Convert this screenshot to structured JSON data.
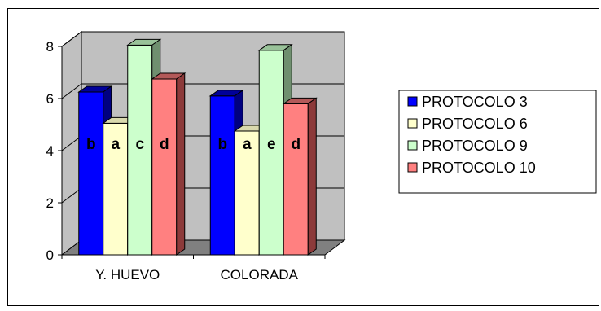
{
  "chart_data": {
    "type": "bar",
    "categories": [
      "Y. HUEVO",
      "COLORADA"
    ],
    "series": [
      {
        "name": "PROTOCOLO 3",
        "values": [
          6.25,
          6.1
        ],
        "letters": [
          "b",
          "b"
        ],
        "color": "#0000ff",
        "side": "#000080",
        "top": "#000099"
      },
      {
        "name": "PROTOCOLO 6",
        "values": [
          5.05,
          4.75
        ],
        "letters": [
          "a",
          "a"
        ],
        "color": "#ffffcc",
        "side": "#bfbf99",
        "top": "#d9d9ad"
      },
      {
        "name": "PROTOCOLO 9",
        "values": [
          8.05,
          7.85
        ],
        "letters": [
          "c",
          "e"
        ],
        "color": "#ccffcc",
        "side": "#6f8f6f",
        "top": "#99c299"
      },
      {
        "name": "PROTOCOLO 10",
        "values": [
          6.75,
          5.8
        ],
        "letters": [
          "d",
          "d"
        ],
        "color": "#ff8080",
        "side": "#8c3a3a",
        "top": "#b35959"
      }
    ],
    "ylim": [
      0,
      8
    ],
    "yticks": [
      "0",
      "2",
      "4",
      "6",
      "8"
    ],
    "grid": true,
    "legend": "right",
    "wall_color": "#c0c0c0",
    "floor_color": "#808080"
  }
}
